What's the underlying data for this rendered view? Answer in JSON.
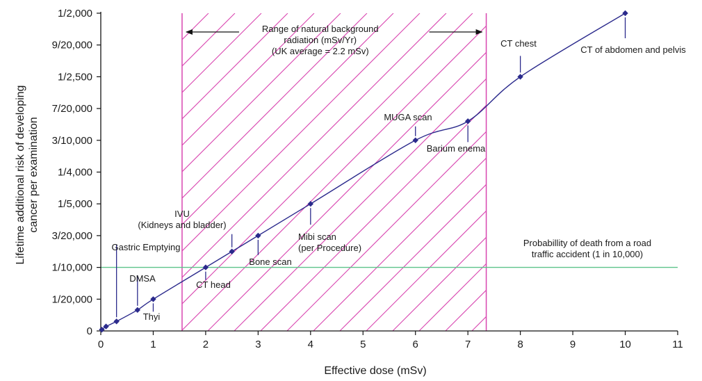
{
  "chart_data": {
    "type": "line",
    "xlabel": "Effective dose (mSv)",
    "ylabel_lines": [
      "Lifetime additional risk of developing",
      "cancer per examination"
    ],
    "xlim": [
      0,
      11
    ],
    "ylim": [
      0,
      0.0005
    ],
    "x_ticks": [
      "0",
      "1",
      "2",
      "3",
      "4",
      "5",
      "6",
      "7",
      "8",
      "9",
      "10",
      "11"
    ],
    "y_ticks": [
      {
        "label": "0",
        "value": 0
      },
      {
        "label": "1/20,000",
        "value": 5e-05
      },
      {
        "label": "1/10,000",
        "value": 0.0001
      },
      {
        "label": "3/20,000",
        "value": 0.00015
      },
      {
        "label": "1/5,000",
        "value": 0.0002
      },
      {
        "label": "1/4,000",
        "value": 0.00025
      },
      {
        "label": "3/10,000",
        "value": 0.0003
      },
      {
        "label": "7/20,000",
        "value": 0.00035
      },
      {
        "label": "1/2,500",
        "value": 0.0004
      },
      {
        "label": "9/20,000",
        "value": 0.00045
      },
      {
        "label": "1/2,000",
        "value": 0.0005
      }
    ],
    "points": [
      {
        "x": 0.02,
        "y": 2e-06,
        "label": ""
      },
      {
        "x": 0.1,
        "y": 7e-06,
        "label": ""
      },
      {
        "x": 0.3,
        "y": 1.5e-05,
        "label": "Gastric Emptying"
      },
      {
        "x": 0.7,
        "y": 3.3e-05,
        "label": "DMSA"
      },
      {
        "x": 1.0,
        "y": 5e-05,
        "label": "Thyi"
      },
      {
        "x": 2.0,
        "y": 0.0001,
        "label": "CT head"
      },
      {
        "x": 2.5,
        "y": 0.000125,
        "label": "IVU\n(Kidneys and bladder)"
      },
      {
        "x": 3.0,
        "y": 0.00015,
        "label": "Bone scan"
      },
      {
        "x": 4.0,
        "y": 0.0002,
        "label": "Mibi scan\n(per Procedure)"
      },
      {
        "x": 6.0,
        "y": 0.0003,
        "label": "MUGA scan"
      },
      {
        "x": 7.0,
        "y": 0.00033,
        "label": "Barium enema"
      },
      {
        "x": 8.0,
        "y": 0.0004,
        "label": "CT chest"
      },
      {
        "x": 10.0,
        "y": 0.0005,
        "label": "CT of abdomen and pelvis"
      }
    ],
    "shaded_region": {
      "x_range": [
        1.55,
        7.35
      ],
      "label": "Range of natural background\nradiation (mSv/Yr)\n(UK average = 2.2 mSv)",
      "color": "#d946b0"
    },
    "reference_line": {
      "y": 0.0001,
      "label": "Probabillity of death from a road\ntraffic accident (1 in 10,000)",
      "color": "#5cc38a"
    },
    "series_color": "#2b2a8c",
    "grid": false
  }
}
